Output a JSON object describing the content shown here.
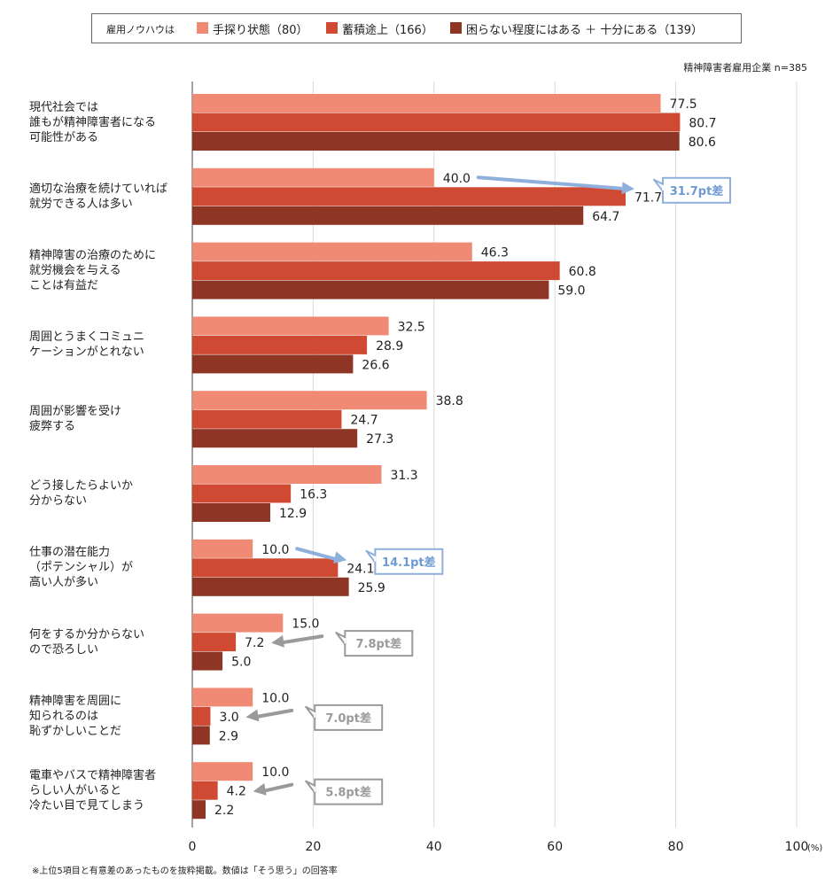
{
  "legend": {
    "title": "雇用ノウハウは",
    "items": [
      {
        "label": "手探り状態（80）",
        "color": "#f08a75"
      },
      {
        "label": "蓄積途上（166）",
        "color": "#d04a33"
      },
      {
        "label": "困らない程度にはある ＋ 十分にある（139）",
        "color": "#8e3526"
      }
    ]
  },
  "subnote": "精神障害者雇用企業 n=385",
  "footnote": "※上位5項目と有意差のあったものを抜粋掲載。数値は「そう思う」の回答率",
  "chart_data": {
    "type": "bar",
    "orientation": "horizontal",
    "categories": [
      [
        "現代社会では",
        "誰もが精神障害者になる",
        "可能性がある"
      ],
      [
        "適切な治療を続けていれば",
        "就労できる人は多い"
      ],
      [
        "精神障害の治療のために",
        "就労機会を与える",
        "ことは有益だ"
      ],
      [
        "周囲とうまくコミュニ",
        "ケーションがとれない"
      ],
      [
        "周囲が影響を受け",
        "疲弊する"
      ],
      [
        "どう接したらよいか",
        "分からない"
      ],
      [
        "仕事の潜在能力",
        "（ポテンシャル）が",
        "高い人が多い"
      ],
      [
        "何をするか分からない",
        "ので恐ろしい"
      ],
      [
        "精神障害を周囲に",
        "知られるのは",
        "恥ずかしいことだ"
      ],
      [
        "電車やバスで精神障害者",
        "らしい人がいると",
        "冷たい目で見てしまう"
      ]
    ],
    "series": [
      {
        "name": "手探り状態（80）",
        "color": "#f08a75",
        "values": [
          77.5,
          40.0,
          46.3,
          32.5,
          38.8,
          31.3,
          10.0,
          15.0,
          10.0,
          10.0
        ],
        "labels": [
          "77.5",
          "40.0",
          "46.3",
          "32.5",
          "38.8",
          "31.3",
          "10.0",
          "15.0",
          "10.0",
          "10.0"
        ]
      },
      {
        "name": "蓄積途上（166）",
        "color": "#d04a33",
        "values": [
          80.7,
          71.7,
          60.8,
          28.9,
          24.7,
          16.3,
          24.1,
          7.2,
          3.0,
          4.2
        ],
        "labels": [
          "80.7",
          "71.7",
          "60.8",
          "28.9",
          "24.7",
          "16.3",
          "24.1",
          "7.2",
          "3.0",
          "4.2"
        ]
      },
      {
        "name": "困らない程度にはある ＋ 十分にある（139）",
        "color": "#8e3526",
        "values": [
          80.6,
          64.7,
          59.0,
          26.6,
          27.3,
          12.9,
          25.9,
          5.0,
          2.9,
          2.2
        ],
        "labels": [
          "80.6",
          "64.7",
          "59.0",
          "26.6",
          "27.3",
          "12.9",
          "25.9",
          "5.0",
          "2.9",
          "2.2"
        ]
      }
    ],
    "xlim": [
      0,
      100
    ],
    "xticks": [
      0,
      20,
      40,
      60,
      80,
      100
    ],
    "xtick_labels": [
      "0",
      "20",
      "40",
      "60",
      "80",
      "100"
    ],
    "x_unit": "(%)",
    "grid": true,
    "legend_position": "top",
    "annotations": [
      {
        "category_index": 1,
        "from_series": 0,
        "to_series": 1,
        "text": "31.7pt差",
        "color": "#8fb0dc",
        "text_color": "#6e9ad3"
      },
      {
        "category_index": 6,
        "from_series": 0,
        "to_series": 1,
        "text": "14.1pt差",
        "color": "#8fb0dc",
        "text_color": "#6e9ad3"
      },
      {
        "category_index": 7,
        "from_series": 0,
        "to_series": 1,
        "text": "7.8pt差",
        "color": "#9a9a9a",
        "text_color": "#9a9a9a"
      },
      {
        "category_index": 8,
        "from_series": 0,
        "to_series": 1,
        "text": "7.0pt差",
        "color": "#9a9a9a",
        "text_color": "#9a9a9a"
      },
      {
        "category_index": 9,
        "from_series": 0,
        "to_series": 1,
        "text": "5.8pt差",
        "color": "#9a9a9a",
        "text_color": "#9a9a9a"
      }
    ]
  }
}
